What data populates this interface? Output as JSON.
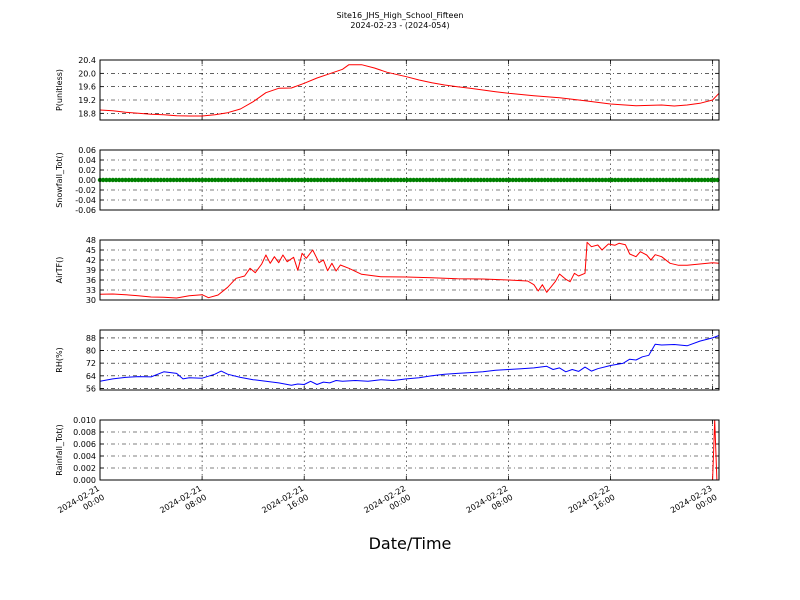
{
  "chart_data": {
    "title": "Site16_JHS_High_School_Fifteen",
    "subtitle": "2024-02-23 - (2024-054)",
    "xlabel": "Date/Time",
    "x_ticks": [
      "2024-02-21\n00:00",
      "2024-02-21\n08:00",
      "2024-02-21\n16:00",
      "2024-02-22\n00:00",
      "2024-02-22\n08:00",
      "2024-02-22\n16:00",
      "2024-02-23\n00:00"
    ],
    "x_range": [
      "2024-02-21 00:00",
      "2024-02-23 00:30"
    ],
    "grid": true,
    "panels": [
      {
        "type": "line",
        "ylabel": "P(unitless)",
        "color": "#ff0000",
        "ylim": [
          18.6,
          20.4
        ],
        "yticks": [
          "18.8",
          "19.2",
          "19.6",
          "20.0",
          "20.4"
        ],
        "points": [
          [
            "2024-02-21 00:00",
            18.9
          ],
          [
            "2024-02-21 01:00",
            18.88
          ],
          [
            "2024-02-21 02:00",
            18.83
          ],
          [
            "2024-02-21 03:00",
            18.8
          ],
          [
            "2024-02-21 04:00",
            18.77
          ],
          [
            "2024-02-21 05:00",
            18.76
          ],
          [
            "2024-02-21 06:00",
            18.73
          ],
          [
            "2024-02-21 07:00",
            18.72
          ],
          [
            "2024-02-21 08:00",
            18.72
          ],
          [
            "2024-02-21 09:00",
            18.76
          ],
          [
            "2024-02-21 10:00",
            18.82
          ],
          [
            "2024-02-21 11:00",
            18.93
          ],
          [
            "2024-02-21 12:00",
            19.15
          ],
          [
            "2024-02-21 13:00",
            19.42
          ],
          [
            "2024-02-21 14:00",
            19.55
          ],
          [
            "2024-02-21 15:00",
            19.56
          ],
          [
            "2024-02-21 16:00",
            19.7
          ],
          [
            "2024-02-21 17:00",
            19.86
          ],
          [
            "2024-02-21 18:00",
            19.99
          ],
          [
            "2024-02-21 19:00",
            20.12
          ],
          [
            "2024-02-21 19:30",
            20.26
          ],
          [
            "2024-02-21 20:30",
            20.26
          ],
          [
            "2024-02-21 21:30",
            20.16
          ],
          [
            "2024-02-21 22:30",
            20.03
          ],
          [
            "2024-02-22 00:00",
            19.9
          ],
          [
            "2024-02-22 01:00",
            19.8
          ],
          [
            "2024-02-22 02:00",
            19.72
          ],
          [
            "2024-02-22 03:00",
            19.65
          ],
          [
            "2024-02-22 04:00",
            19.6
          ],
          [
            "2024-02-22 05:00",
            19.55
          ],
          [
            "2024-02-22 06:00",
            19.5
          ],
          [
            "2024-02-22 07:00",
            19.45
          ],
          [
            "2024-02-22 08:00",
            19.4
          ],
          [
            "2024-02-22 10:00",
            19.33
          ],
          [
            "2024-02-22 12:00",
            19.27
          ],
          [
            "2024-02-22 14:00",
            19.18
          ],
          [
            "2024-02-22 16:00",
            19.08
          ],
          [
            "2024-02-22 18:00",
            19.03
          ],
          [
            "2024-02-22 20:00",
            19.05
          ],
          [
            "2024-02-22 21:00",
            19.02
          ],
          [
            "2024-02-22 22:00",
            19.05
          ],
          [
            "2024-02-22 23:00",
            19.1
          ],
          [
            "2024-02-23 00:00",
            19.2
          ],
          [
            "2024-02-23 00:30",
            19.4
          ]
        ]
      },
      {
        "type": "scatter",
        "ylabel": "Snowfall_Tot()",
        "color": "#008000",
        "ylim": [
          -0.06,
          0.06
        ],
        "yticks": [
          "-0.06",
          "-0.04",
          "-0.02",
          "0.00",
          "0.02",
          "0.04",
          "0.06"
        ],
        "constant_value": 0.0
      },
      {
        "type": "line",
        "ylabel": "AirTF()",
        "color": "#ff0000",
        "ylim": [
          30,
          48
        ],
        "yticks": [
          "30",
          "33",
          "36",
          "39",
          "42",
          "45",
          "48"
        ],
        "points": [
          [
            "2024-02-21 00:00",
            31.7
          ],
          [
            "2024-02-21 01:00",
            31.8
          ],
          [
            "2024-02-21 02:00",
            31.6
          ],
          [
            "2024-02-21 03:00",
            31.3
          ],
          [
            "2024-02-21 04:00",
            30.9
          ],
          [
            "2024-02-21 05:00",
            30.8
          ],
          [
            "2024-02-21 06:00",
            30.6
          ],
          [
            "2024-02-21 07:00",
            31.3
          ],
          [
            "2024-02-21 08:00",
            31.6
          ],
          [
            "2024-02-21 08:30",
            30.7
          ],
          [
            "2024-02-21 09:15",
            31.5
          ],
          [
            "2024-02-21 10:00",
            33.8
          ],
          [
            "2024-02-21 10:40",
            36.5
          ],
          [
            "2024-02-21 11:20",
            37.2
          ],
          [
            "2024-02-21 11:45",
            39.5
          ],
          [
            "2024-02-21 12:10",
            38.2
          ],
          [
            "2024-02-21 12:40",
            40.8
          ],
          [
            "2024-02-21 13:00",
            43.5
          ],
          [
            "2024-02-21 13:20",
            41.0
          ],
          [
            "2024-02-21 13:40",
            43.0
          ],
          [
            "2024-02-21 14:00",
            41.2
          ],
          [
            "2024-02-21 14:20",
            43.5
          ],
          [
            "2024-02-21 14:40",
            41.5
          ],
          [
            "2024-02-21 15:10",
            42.8
          ],
          [
            "2024-02-21 15:30",
            38.9
          ],
          [
            "2024-02-21 15:50",
            44.0
          ],
          [
            "2024-02-21 16:10",
            42.5
          ],
          [
            "2024-02-21 16:40",
            45.0
          ],
          [
            "2024-02-21 17:10",
            41.2
          ],
          [
            "2024-02-21 17:30",
            42.0
          ],
          [
            "2024-02-21 17:50",
            38.8
          ],
          [
            "2024-02-21 18:10",
            41.0
          ],
          [
            "2024-02-21 18:30",
            38.7
          ],
          [
            "2024-02-21 18:50",
            40.5
          ],
          [
            "2024-02-21 19:30",
            39.5
          ],
          [
            "2024-02-21 20:30",
            37.7
          ],
          [
            "2024-02-21 22:00",
            37.0
          ],
          [
            "2024-02-22 00:00",
            36.9
          ],
          [
            "2024-02-22 02:00",
            36.7
          ],
          [
            "2024-02-22 04:00",
            36.4
          ],
          [
            "2024-02-22 06:00",
            36.3
          ],
          [
            "2024-02-22 08:00",
            36.0
          ],
          [
            "2024-02-22 09:30",
            35.7
          ],
          [
            "2024-02-22 10:00",
            34.6
          ],
          [
            "2024-02-22 10:20",
            32.7
          ],
          [
            "2024-02-22 10:40",
            34.6
          ],
          [
            "2024-02-22 11:00",
            32.3
          ],
          [
            "2024-02-22 11:40",
            35.5
          ],
          [
            "2024-02-22 12:00",
            37.8
          ],
          [
            "2024-02-22 12:30",
            36.2
          ],
          [
            "2024-02-22 12:50",
            35.5
          ],
          [
            "2024-02-22 13:10",
            38.0
          ],
          [
            "2024-02-22 13:30",
            37.2
          ],
          [
            "2024-02-22 14:00",
            38.0
          ],
          [
            "2024-02-22 14:10",
            47.3
          ],
          [
            "2024-02-22 14:30",
            46.0
          ],
          [
            "2024-02-22 15:00",
            46.5
          ],
          [
            "2024-02-22 15:20",
            45.0
          ],
          [
            "2024-02-22 15:50",
            46.8
          ],
          [
            "2024-02-22 16:20",
            46.4
          ],
          [
            "2024-02-22 16:40",
            47.0
          ],
          [
            "2024-02-22 17:10",
            46.6
          ],
          [
            "2024-02-22 17:30",
            43.8
          ],
          [
            "2024-02-22 18:00",
            43.0
          ],
          [
            "2024-02-22 18:20",
            44.5
          ],
          [
            "2024-02-22 18:50",
            43.5
          ],
          [
            "2024-02-22 19:10",
            42.0
          ],
          [
            "2024-02-22 19:30",
            43.6
          ],
          [
            "2024-02-22 20:00",
            43.0
          ],
          [
            "2024-02-22 20:40",
            41.0
          ],
          [
            "2024-02-22 21:20",
            40.4
          ],
          [
            "2024-02-22 22:00",
            40.4
          ],
          [
            "2024-02-22 23:00",
            40.8
          ],
          [
            "2024-02-23 00:00",
            41.2
          ],
          [
            "2024-02-23 00:30",
            41.0
          ]
        ]
      },
      {
        "type": "line",
        "ylabel": "RH(%)",
        "color": "#0000ff",
        "ylim": [
          55,
          93
        ],
        "yticks": [
          "56",
          "64",
          "72",
          "80",
          "88"
        ],
        "points": [
          [
            "2024-02-21 00:00",
            60.5
          ],
          [
            "2024-02-21 01:00",
            62.0
          ],
          [
            "2024-02-21 02:00",
            63.0
          ],
          [
            "2024-02-21 03:00",
            63.5
          ],
          [
            "2024-02-21 04:00",
            63.3
          ],
          [
            "2024-02-21 05:00",
            66.5
          ],
          [
            "2024-02-21 06:00",
            65.5
          ],
          [
            "2024-02-21 06:30",
            62.0
          ],
          [
            "2024-02-21 07:00",
            62.8
          ],
          [
            "2024-02-21 08:00",
            62.5
          ],
          [
            "2024-02-21 09:00",
            65.0
          ],
          [
            "2024-02-21 09:30",
            67.0
          ],
          [
            "2024-02-21 10:00",
            65.0
          ],
          [
            "2024-02-21 11:00",
            63.0
          ],
          [
            "2024-02-21 12:00",
            61.5
          ],
          [
            "2024-02-21 13:00",
            60.5
          ],
          [
            "2024-02-21 14:00",
            59.5
          ],
          [
            "2024-02-21 15:00",
            58.0
          ],
          [
            "2024-02-21 15:30",
            58.8
          ],
          [
            "2024-02-21 16:00",
            58.5
          ],
          [
            "2024-02-21 16:30",
            60.5
          ],
          [
            "2024-02-21 17:00",
            58.5
          ],
          [
            "2024-02-21 17:30",
            60.0
          ],
          [
            "2024-02-21 18:00",
            59.5
          ],
          [
            "2024-02-21 18:30",
            61.0
          ],
          [
            "2024-02-21 19:00",
            60.5
          ],
          [
            "2024-02-21 20:00",
            61.0
          ],
          [
            "2024-02-21 21:00",
            60.5
          ],
          [
            "2024-02-21 22:00",
            61.5
          ],
          [
            "2024-02-21 23:00",
            61.0
          ],
          [
            "2024-02-22 00:00",
            62.0
          ],
          [
            "2024-02-22 01:00",
            62.8
          ],
          [
            "2024-02-22 02:00",
            64.0
          ],
          [
            "2024-02-22 03:00",
            65.0
          ],
          [
            "2024-02-22 04:00",
            65.5
          ],
          [
            "2024-02-22 05:00",
            66.0
          ],
          [
            "2024-02-22 06:00",
            66.5
          ],
          [
            "2024-02-22 07:00",
            67.5
          ],
          [
            "2024-02-22 08:00",
            68.0
          ],
          [
            "2024-02-22 09:00",
            68.5
          ],
          [
            "2024-02-22 10:00",
            69.0
          ],
          [
            "2024-02-22 11:00",
            70.0
          ],
          [
            "2024-02-22 11:30",
            68.0
          ],
          [
            "2024-02-22 12:00",
            69.0
          ],
          [
            "2024-02-22 12:30",
            66.5
          ],
          [
            "2024-02-22 13:00",
            68.0
          ],
          [
            "2024-02-22 13:30",
            66.8
          ],
          [
            "2024-02-22 14:00",
            69.5
          ],
          [
            "2024-02-22 14:30",
            67.0
          ],
          [
            "2024-02-22 15:00",
            68.5
          ],
          [
            "2024-02-22 16:00",
            70.5
          ],
          [
            "2024-02-22 17:00",
            72.0
          ],
          [
            "2024-02-22 17:30",
            74.5
          ],
          [
            "2024-02-22 18:00",
            74.0
          ],
          [
            "2024-02-22 18:30",
            76.0
          ],
          [
            "2024-02-22 19:00",
            77.0
          ],
          [
            "2024-02-22 19:30",
            84.0
          ],
          [
            "2024-02-22 20:00",
            83.5
          ],
          [
            "2024-02-22 21:00",
            83.8
          ],
          [
            "2024-02-22 22:00",
            83.0
          ],
          [
            "2024-02-22 23:00",
            86.0
          ],
          [
            "2024-02-23 00:00",
            88.0
          ],
          [
            "2024-02-23 00:30",
            89.5
          ]
        ]
      },
      {
        "type": "line",
        "ylabel": "Rainfall_Tot()",
        "color": "#ff0000",
        "ylim": [
          0.0,
          0.01
        ],
        "yticks": [
          "0.000",
          "0.002",
          "0.004",
          "0.006",
          "0.008",
          "0.010"
        ],
        "points": [
          [
            "2024-02-21 00:00",
            0.0
          ],
          [
            "2024-02-23 00:00",
            0.0
          ],
          [
            "2024-02-23 00:10",
            0.01
          ],
          [
            "2024-02-23 00:20",
            0.0
          ],
          [
            "2024-02-23 00:30",
            0.0
          ]
        ]
      }
    ]
  }
}
